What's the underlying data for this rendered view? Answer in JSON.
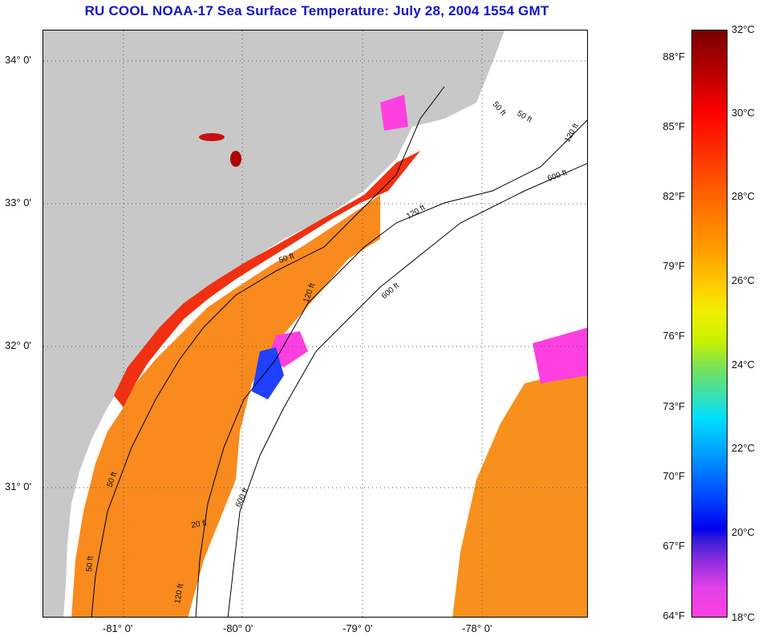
{
  "title": "RU COOL  NOAA-17  Sea Surface Temperature:  July 28, 2004 1554 GMT",
  "map": {
    "lat_labels": [
      "34° 0'",
      "33° 0'",
      "32° 0'",
      "31° 0'"
    ],
    "lon_labels": [
      "-81° 0'",
      "-80° 0'",
      "-79° 0'",
      "-78° 0'"
    ],
    "lat_range": [
      30.1,
      34.2
    ],
    "lon_range": [
      -81.67,
      -77.18
    ],
    "isobaths": [
      "50 ft",
      "120 ft",
      "600 ft"
    ],
    "isobath_labels": [
      "50 ft",
      "120 ft",
      "600 ft",
      "600 ft",
      "120 ft",
      "50 ft",
      "600 ft",
      "120 ft",
      "50 ft",
      "20 ft",
      "50 ft",
      "120 ft",
      "50 ft"
    ],
    "land_color": "#c8c8c8",
    "cloud_color": "#ffffff",
    "graticule": "dotted"
  },
  "colorbar": {
    "fahrenheit": [
      "88°F",
      "85°F",
      "82°F",
      "79°F",
      "76°F",
      "73°F",
      "70°F",
      "67°F",
      "64°F"
    ],
    "celsius": [
      "32°C",
      "30°C",
      "28°C",
      "26°C",
      "24°C",
      "22°C",
      "20°C",
      "18°C"
    ],
    "range_c": [
      18,
      32
    ],
    "range_f": [
      64,
      88
    ]
  }
}
